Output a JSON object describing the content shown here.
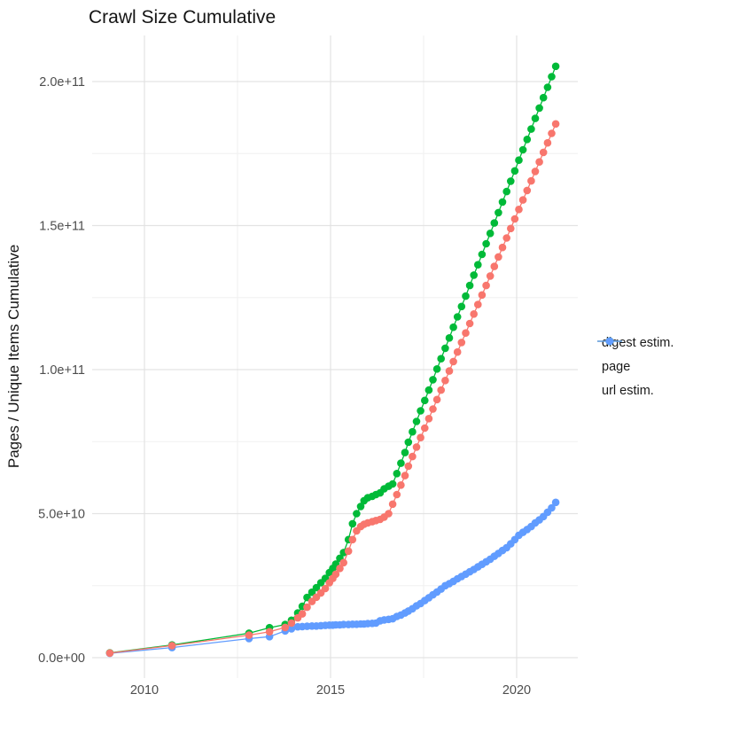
{
  "chart_data": {
    "type": "line",
    "title": "Crawl Size Cumulative",
    "xlabel": "",
    "ylabel": "Pages / Unique Items Cumulative",
    "grid": true,
    "legend_position": "right",
    "x_tick_values": [
      2010,
      2015,
      2020
    ],
    "x_tick_labels": [
      "2010",
      "2015",
      "2020"
    ],
    "y_tick_values": [
      0,
      50000000000.0,
      100000000000.0,
      150000000000.0,
      200000000000.0
    ],
    "y_tick_labels": [
      "0.0e+00",
      "5.0e+10",
      "1.0e+11",
      "1.5e+11",
      "2.0e+11"
    ],
    "xlim": [
      2008.6,
      2021.6
    ],
    "ylim": [
      0,
      216000000000.0
    ],
    "x": [
      2009.07,
      2010.74,
      2012.81,
      2013.36,
      2013.78,
      2013.95,
      2014.12,
      2014.24,
      2014.37,
      2014.5,
      2014.62,
      2014.74,
      2014.86,
      2014.97,
      2015.06,
      2015.14,
      2015.25,
      2015.35,
      2015.48,
      2015.59,
      2015.7,
      2015.81,
      2015.9,
      2016.0,
      2016.12,
      2016.22,
      2016.33,
      2016.44,
      2016.56,
      2016.67,
      2016.78,
      2016.89,
      2017.0,
      2017.09,
      2017.2,
      2017.31,
      2017.42,
      2017.53,
      2017.64,
      2017.75,
      2017.86,
      2017.97,
      2018.08,
      2018.19,
      2018.3,
      2018.41,
      2018.52,
      2018.63,
      2018.74,
      2018.85,
      2018.96,
      2019.07,
      2019.18,
      2019.29,
      2019.4,
      2019.51,
      2019.62,
      2019.73,
      2019.84,
      2019.95,
      2020.06,
      2020.17,
      2020.28,
      2020.39,
      2020.5,
      2020.61,
      2020.72,
      2020.83,
      2020.94,
      2021.05
    ],
    "series": [
      {
        "name": "digest estim.",
        "color": "#F8766D",
        "values": [
          1600000000.0,
          4200000000.0,
          7800000000.0,
          9000000000.0,
          10500000000.0,
          12000000000.0,
          13800000000.0,
          15200000000.0,
          17500000000.0,
          19500000000.0,
          21000000000.0,
          22500000000.0,
          24000000000.0,
          26000000000.0,
          27500000000.0,
          29000000000.0,
          31000000000.0,
          33000000000.0,
          37000000000.0,
          41000000000.0,
          44000000000.0,
          45500000000.0,
          46300000000.0,
          46800000000.0,
          47200000000.0,
          47600000000.0,
          48000000000.0,
          48800000000.0,
          50000000000.0,
          53300000000.0,
          56600000000.0,
          59900000000.0,
          63200000000.0,
          66500000000.0,
          69800000000.0,
          73100000000.0,
          76400000000.0,
          79700000000.0,
          83000000000.0,
          86300000000.0,
          89600000000.0,
          92900000000.0,
          96200000000.0,
          99500000000.0,
          102800000000.0,
          106100000000.0,
          109400000000.0,
          112700000000.0,
          116000000000.0,
          119300000000.0,
          122600000000.0,
          125900000000.0,
          129200000000.0,
          132500000000.0,
          135800000000.0,
          139100000000.0,
          142400000000.0,
          145700000000.0,
          149000000000.0,
          152300000000.0,
          155600000000.0,
          158900000000.0,
          162200000000.0,
          165500000000.0,
          168800000000.0,
          172100000000.0,
          175400000000.0,
          178700000000.0,
          182000000000.0,
          185300000000.0
        ]
      },
      {
        "name": "page",
        "color": "#00BA38",
        "values": [
          1700000000.0,
          4400000000.0,
          8500000000.0,
          10400000000.0,
          11500000000.0,
          13000000000.0,
          15500000000.0,
          17800000000.0,
          20900000000.0,
          22700000000.0,
          24300000000.0,
          26000000000.0,
          27500000000.0,
          29500000000.0,
          31000000000.0,
          32500000000.0,
          34500000000.0,
          36500000000.0,
          41000000000.0,
          46500000000.0,
          50000000000.0,
          52500000000.0,
          54500000000.0,
          55500000000.0,
          56000000000.0,
          56600000000.0,
          57200000000.0,
          58600000000.0,
          59500000000.0,
          60300000000.0,
          63900000000.0,
          67500000000.0,
          71200000000.0,
          74800000000.0,
          78400000000.0,
          82000000000.0,
          85700000000.0,
          89300000000.0,
          92900000000.0,
          96500000000.0,
          100200000000.0,
          103800000000.0,
          107400000000.0,
          111000000000.0,
          114700000000.0,
          118300000000.0,
          121900000000.0,
          125500000000.0,
          129200000000.0,
          132800000000.0,
          136400000000.0,
          140000000000.0,
          143700000000.0,
          147300000000.0,
          150900000000.0,
          154500000000.0,
          158200000000.0,
          161800000000.0,
          165400000000.0,
          169000000000.0,
          172700000000.0,
          176300000000.0,
          179900000000.0,
          183500000000.0,
          187200000000.0,
          190800000000.0,
          194400000000.0,
          198000000000.0,
          201700000000.0,
          205300000000.0
        ]
      },
      {
        "name": "url estim.",
        "color": "#619CFF",
        "values": [
          1500000000.0,
          3500000000.0,
          6600000000.0,
          7300000000.0,
          9300000000.0,
          10000000000.0,
          10700000000.0,
          10800000000.0,
          10900000000.0,
          11000000000.0,
          11000000000.0,
          11100000000.0,
          11200000000.0,
          11300000000.0,
          11300000000.0,
          11400000000.0,
          11400000000.0,
          11500000000.0,
          11500000000.0,
          11600000000.0,
          11600000000.0,
          11700000000.0,
          11700000000.0,
          11800000000.0,
          11900000000.0,
          12000000000.0,
          12800000000.0,
          13100000000.0,
          13300000000.0,
          13500000000.0,
          14300000000.0,
          14800000000.0,
          15500000000.0,
          16200000000.0,
          17000000000.0,
          18000000000.0,
          18800000000.0,
          19800000000.0,
          20800000000.0,
          21800000000.0,
          22800000000.0,
          23800000000.0,
          25000000000.0,
          25700000000.0,
          26500000000.0,
          27400000000.0,
          28200000000.0,
          29000000000.0,
          29800000000.0,
          30600000000.0,
          31500000000.0,
          32400000000.0,
          33300000000.0,
          34200000000.0,
          35200000000.0,
          36200000000.0,
          37200000000.0,
          38200000000.0,
          39500000000.0,
          41000000000.0,
          42500000000.0,
          43500000000.0,
          44500000000.0,
          45500000000.0,
          46800000000.0,
          47800000000.0,
          49000000000.0,
          50500000000.0,
          52000000000.0,
          53900000000.0
        ]
      }
    ],
    "grid_colors": {
      "major": "#e3e3e3",
      "minor": "#f0f0f0"
    }
  }
}
